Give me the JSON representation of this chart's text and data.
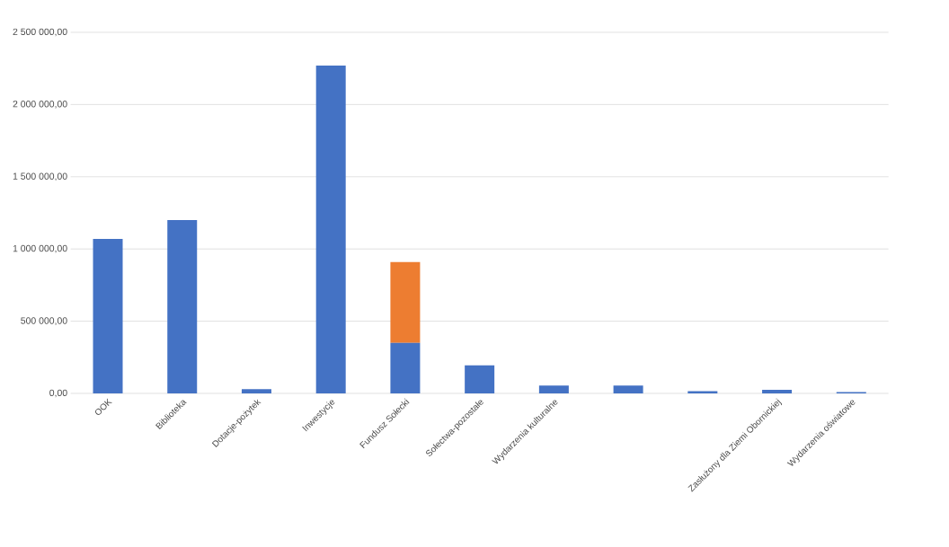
{
  "chart_data": {
    "type": "bar",
    "stacked": true,
    "categories": [
      "OOK",
      "Biblioteka",
      "Dotacje-pożytek",
      "Inwestycje",
      "Fundusz Sołecki",
      "Sołectwa-pozostałe",
      "Wydarzenia kulturalne",
      null,
      null,
      "Zasłużony dla Ziemi Obornickiej",
      "Wydarzenia oświatowe"
    ],
    "series": [
      {
        "color": "#4472c4",
        "values": [
          1070000,
          1200000,
          30000,
          2270000,
          350000,
          195000,
          55000,
          55000,
          15000,
          25000,
          10000
        ]
      },
      {
        "color": "#ed7d31",
        "values": [
          null,
          null,
          null,
          null,
          560000,
          null,
          null,
          null,
          null,
          null,
          null
        ]
      }
    ],
    "ylim": [
      0,
      2500000
    ],
    "yticks": [
      {
        "value": 0,
        "label": "0,00"
      },
      {
        "value": 500000,
        "label": "500 000,00"
      },
      {
        "value": 1000000,
        "label": "1 000 000,00"
      },
      {
        "value": 1500000,
        "label": "1 500 000,00"
      },
      {
        "value": 2000000,
        "label": "2 000 000,00"
      },
      {
        "value": 2500000,
        "label": "2 500 000,00"
      }
    ],
    "grid": "y"
  }
}
